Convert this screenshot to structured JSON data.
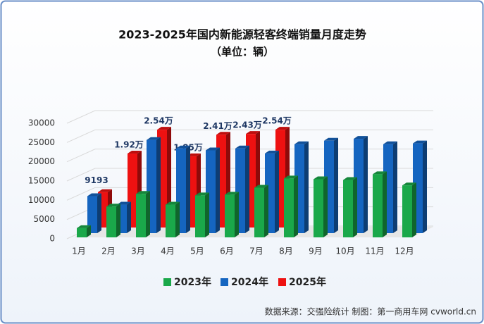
{
  "chart_data": {
    "type": "bar3d",
    "title": "2023-2025年国内新能源轻客终端销量月度走势",
    "subtitle": "（单位：辆）",
    "source": "数据来源：交强险统计  制图：第一商用车网 cvworld.cn",
    "categories": [
      "1月",
      "2月",
      "3月",
      "4月",
      "5月",
      "6月",
      "7月",
      "8月",
      "9月",
      "10月",
      "11月",
      "12月"
    ],
    "series": [
      {
        "name": "2023年",
        "color": "#1aa84a",
        "values": [
          2400,
          8000,
          11300,
          8500,
          10900,
          11100,
          12900,
          15300,
          15100,
          14900,
          16400,
          13500
        ]
      },
      {
        "name": "2024年",
        "color": "#1565c0",
        "values": [
          9600,
          7400,
          24200,
          22000,
          21500,
          22000,
          20700,
          23100,
          24000,
          24500,
          23100,
          23300
        ]
      },
      {
        "name": "2025年",
        "color": "#ee1111",
        "values": [
          9193,
          19200,
          25400,
          18500,
          24100,
          24300,
          25400,
          null,
          null,
          null,
          null,
          null
        ],
        "value_labels": [
          "9193",
          "1.92万",
          "2.54万",
          "1.85万",
          "2.41万",
          "2.43万",
          "2.54万",
          null,
          null,
          null,
          null,
          null
        ]
      }
    ],
    "ylim": [
      0,
      30000
    ],
    "yticks": [
      0,
      5000,
      10000,
      15000,
      20000,
      25000,
      30000
    ],
    "grid": true,
    "legend": "bottom"
  }
}
